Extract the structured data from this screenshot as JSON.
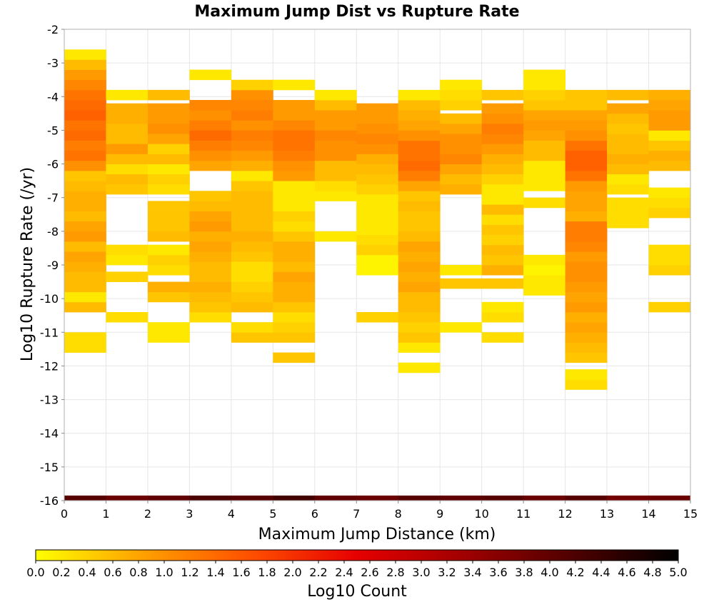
{
  "chart_data": {
    "type": "heatmap",
    "title": "Maximum Jump Dist vs Rupture Rate",
    "xlabel": "Maximum Jump Distance (km)",
    "ylabel": "Log10 Rupture Rate (/yr)",
    "xlim": [
      0,
      15
    ],
    "ylim": [
      -16,
      -2
    ],
    "x_ticks": [
      "0",
      "1",
      "2",
      "3",
      "4",
      "5",
      "6",
      "7",
      "8",
      "9",
      "10",
      "11",
      "12",
      "13",
      "14",
      "15"
    ],
    "y_ticks": [
      "-2",
      "-3",
      "-4",
      "-5",
      "-6",
      "-7",
      "-8",
      "-9",
      "-10",
      "-11",
      "-12",
      "-13",
      "-14",
      "-15",
      "-16"
    ],
    "grid": true,
    "x_bin_width": 1,
    "y_bin_width": 0.3,
    "colorbar": {
      "label": "Log10 Count",
      "min": 0.0,
      "max": 5.0,
      "colormap": [
        "#ffff00",
        "#ffa000",
        "#ff5000",
        "#e60000",
        "#a00000",
        "#500000",
        "#000000"
      ],
      "ticks": [
        "0.0",
        "0.2",
        "0.4",
        "0.6",
        "0.8",
        "1.0",
        "1.2",
        "1.4",
        "1.6",
        "1.8",
        "2.0",
        "2.2",
        "2.4",
        "2.6",
        "2.8",
        "3.0",
        "3.2",
        "3.4",
        "3.6",
        "3.8",
        "4.0",
        "4.2",
        "4.4",
        "4.6",
        "4.8",
        "5.0"
      ]
    },
    "columns": [
      {
        "x": 0.5,
        "y_bin_starts": [
          -16.0
        ],
        "values": [
          4.1
        ]
      },
      {
        "x": 0.5,
        "y_bin_starts": [
          -11.6,
          -11.3,
          -10.4,
          -10.1,
          -9.8,
          -9.5,
          -9.2,
          -8.9,
          -8.6,
          -8.3,
          -8.0,
          -7.7,
          -7.4,
          -7.1,
          -6.8,
          -6.5,
          -6.2,
          -5.9,
          -5.6,
          -5.3,
          -5.0,
          -4.7,
          -4.4,
          -4.1,
          -3.8,
          -3.5,
          -3.2,
          -2.9
        ],
        "values": [
          0.3,
          0.3,
          0.6,
          0.2,
          0.6,
          0.6,
          0.7,
          0.8,
          0.6,
          0.9,
          0.8,
          0.6,
          0.7,
          0.7,
          0.6,
          0.5,
          1.0,
          1.3,
          1.2,
          1.4,
          1.3,
          1.5,
          1.4,
          1.3,
          1.1,
          0.9,
          0.6,
          0.2
        ]
      },
      {
        "x": 1.5,
        "y_bin_starts": [
          -16.0
        ],
        "values": [
          3.9
        ]
      },
      {
        "x": 1.5,
        "y_bin_starts": [
          -10.7,
          -9.5,
          -9.0,
          -8.7,
          -6.9,
          -6.6,
          -6.3,
          -6.0,
          -5.7,
          -5.4,
          -5.1,
          -4.8,
          -4.5,
          -4.1
        ],
        "values": [
          0.3,
          0.4,
          0.2,
          0.3,
          0.5,
          0.6,
          0.3,
          0.6,
          0.9,
          0.6,
          0.6,
          0.7,
          0.7,
          0.2
        ]
      },
      {
        "x": 2.5,
        "y_bin_starts": [
          -16.0
        ],
        "values": [
          4.0
        ]
      },
      {
        "x": 2.5,
        "y_bin_starts": [
          -11.3,
          -11.0,
          -10.1,
          -9.8,
          -9.3,
          -9.0,
          -8.7,
          -8.3,
          -8.0,
          -7.7,
          -7.4,
          -6.9,
          -6.6,
          -6.3,
          -6.0,
          -5.7,
          -5.4,
          -5.1,
          -4.8,
          -4.5,
          -4.1
        ],
        "values": [
          0.2,
          0.2,
          0.5,
          0.7,
          0.3,
          0.4,
          0.2,
          0.6,
          0.5,
          0.5,
          0.5,
          0.3,
          0.4,
          0.2,
          0.6,
          0.4,
          0.8,
          1.0,
          0.9,
          0.9,
          0.6
        ]
      },
      {
        "x": 3.5,
        "y_bin_starts": [
          -16.0
        ],
        "values": [
          4.2
        ]
      },
      {
        "x": 3.5,
        "y_bin_starts": [
          -10.7,
          -10.4,
          -10.1,
          -9.8,
          -9.5,
          -9.2,
          -8.9,
          -8.6,
          -8.3,
          -8.0,
          -7.7,
          -7.4,
          -7.1,
          -6.2,
          -5.9,
          -5.6,
          -5.3,
          -5.0,
          -4.7,
          -4.4,
          -3.5
        ],
        "values": [
          0.3,
          0.5,
          0.6,
          0.7,
          0.6,
          0.6,
          0.7,
          0.8,
          0.7,
          0.9,
          0.8,
          0.6,
          0.5,
          0.8,
          1.0,
          1.2,
          1.4,
          1.2,
          1.0,
          1.1,
          0.2
        ]
      },
      {
        "x": 4.5,
        "y_bin_starts": [
          -16.0
        ],
        "values": [
          4.1
        ]
      },
      {
        "x": 4.5,
        "y_bin_starts": [
          -11.3,
          -11.0,
          -10.4,
          -10.1,
          -9.8,
          -9.5,
          -9.2,
          -8.9,
          -8.6,
          -8.3,
          -8.0,
          -7.7,
          -7.4,
          -7.1,
          -6.8,
          -6.5,
          -6.2,
          -5.9,
          -5.6,
          -5.3,
          -5.0,
          -4.7,
          -4.4,
          -4.1,
          -3.8
        ],
        "values": [
          0.5,
          0.3,
          0.6,
          0.5,
          0.4,
          0.3,
          0.3,
          0.5,
          0.6,
          0.7,
          0.6,
          0.6,
          0.6,
          0.6,
          0.5,
          0.2,
          0.7,
          0.9,
          1.1,
          1.2,
          1.0,
          1.2,
          1.1,
          1.0,
          0.4
        ]
      },
      {
        "x": 5.5,
        "y_bin_starts": [
          -16.0
        ],
        "values": [
          4.3
        ]
      },
      {
        "x": 5.5,
        "y_bin_starts": [
          -11.9,
          -11.3,
          -11.0,
          -10.7,
          -10.4,
          -10.1,
          -9.8,
          -9.5,
          -9.2,
          -8.9,
          -8.6,
          -8.3,
          -8.0,
          -7.7,
          -7.4,
          -7.1,
          -6.8,
          -6.5,
          -6.2,
          -5.9,
          -5.6,
          -5.3,
          -5.0,
          -4.7,
          -4.4,
          -3.8
        ],
        "values": [
          0.5,
          0.5,
          0.4,
          0.3,
          0.5,
          0.7,
          0.7,
          0.8,
          0.6,
          0.7,
          0.7,
          0.5,
          0.3,
          0.4,
          0.2,
          0.2,
          0.2,
          0.9,
          1.0,
          1.2,
          1.3,
          1.3,
          1.1,
          0.9,
          0.9,
          0.2
        ]
      },
      {
        "x": 6.5,
        "y_bin_starts": [
          -16.0
        ],
        "values": [
          4.0
        ]
      },
      {
        "x": 6.5,
        "y_bin_starts": [
          -8.3,
          -7.1,
          -6.8,
          -6.5,
          -6.2,
          -5.9,
          -5.6,
          -5.3,
          -5.0,
          -4.7,
          -4.4,
          -4.1
        ],
        "values": [
          0.2,
          0.2,
          0.3,
          0.6,
          0.6,
          1.0,
          1.0,
          1.1,
          0.9,
          0.9,
          0.6,
          0.2
        ]
      },
      {
        "x": 7.5,
        "y_bin_starts": [
          -16.0
        ],
        "values": [
          3.9
        ]
      },
      {
        "x": 7.5,
        "y_bin_starts": [
          -10.7,
          -9.3,
          -9.0,
          -8.7,
          -8.4,
          -8.1,
          -7.8,
          -7.5,
          -7.2,
          -6.9,
          -6.6,
          -6.3,
          -6.0,
          -5.7,
          -5.4,
          -5.1,
          -4.8,
          -4.5
        ],
        "values": [
          0.4,
          0.1,
          0.1,
          0.4,
          0.3,
          0.2,
          0.2,
          0.2,
          0.2,
          0.4,
          0.5,
          0.6,
          0.7,
          1.0,
          1.1,
          1.0,
          0.9,
          0.9
        ]
      },
      {
        "x": 8.5,
        "y_bin_starts": [
          -16.0
        ],
        "values": [
          4.1
        ]
      },
      {
        "x": 8.5,
        "y_bin_starts": [
          -12.2,
          -11.6,
          -11.3,
          -11.0,
          -10.7,
          -10.4,
          -10.1,
          -9.8,
          -9.5,
          -9.2,
          -8.9,
          -8.6,
          -8.3,
          -8.0,
          -7.7,
          -7.4,
          -7.1,
          -6.8,
          -6.5,
          -6.2,
          -5.9,
          -5.6,
          -5.3,
          -5.0,
          -4.7,
          -4.4,
          -4.1
        ],
        "values": [
          0.2,
          0.2,
          0.5,
          0.4,
          0.5,
          0.6,
          0.6,
          0.8,
          0.7,
          0.8,
          0.7,
          0.8,
          0.6,
          0.5,
          0.5,
          0.6,
          0.5,
          0.8,
          1.2,
          1.4,
          1.3,
          1.3,
          1.0,
          0.8,
          0.7,
          0.6,
          0.2
        ]
      },
      {
        "x": 9.5,
        "y_bin_starts": [
          -16.0
        ],
        "values": [
          4.0
        ]
      },
      {
        "x": 9.5,
        "y_bin_starts": [
          -11.0,
          -9.7,
          -9.3,
          -6.9,
          -6.6,
          -6.3,
          -6.0,
          -5.7,
          -5.4,
          -5.1,
          -4.8,
          -4.4,
          -4.1,
          -3.8
        ],
        "values": [
          0.2,
          0.5,
          0.2,
          0.7,
          0.6,
          0.8,
          1.1,
          1.0,
          1.0,
          0.8,
          0.6,
          0.4,
          0.3,
          0.2
        ]
      },
      {
        "x": 10.5,
        "y_bin_starts": [
          -16.0
        ],
        "values": [
          4.1
        ]
      },
      {
        "x": 10.5,
        "y_bin_starts": [
          -11.3,
          -10.7,
          -10.4,
          -9.7,
          -9.3,
          -9.0,
          -8.7,
          -8.4,
          -8.1,
          -7.8,
          -7.5,
          -7.2,
          -6.9,
          -6.6,
          -6.3,
          -6.0,
          -5.7,
          -5.4,
          -5.1,
          -4.8,
          -4.5,
          -4.1
        ],
        "values": [
          0.3,
          0.3,
          0.2,
          0.5,
          0.7,
          0.5,
          0.6,
          0.4,
          0.5,
          0.3,
          0.6,
          0.2,
          0.2,
          0.4,
          0.6,
          0.7,
          0.9,
          1.1,
          1.2,
          1.0,
          0.9,
          0.5
        ]
      },
      {
        "x": 11.5,
        "y_bin_starts": [
          -16.0
        ],
        "values": [
          3.9
        ]
      },
      {
        "x": 11.5,
        "y_bin_starts": [
          -9.9,
          -9.6,
          -9.3,
          -9.0,
          -7.3,
          -6.8,
          -6.5,
          -6.2,
          -5.9,
          -5.6,
          -5.3,
          -5.0,
          -4.7,
          -4.4,
          -4.1,
          -3.8,
          -3.5
        ],
        "values": [
          0.2,
          0.2,
          0.1,
          0.2,
          0.3,
          0.2,
          0.2,
          0.2,
          0.6,
          0.6,
          0.8,
          0.9,
          0.8,
          0.5,
          0.4,
          0.2,
          0.2
        ]
      },
      {
        "x": 12.5,
        "y_bin_starts": [
          -16.0
        ],
        "values": [
          4.1
        ]
      },
      {
        "x": 12.5,
        "y_bin_starts": [
          -12.7,
          -12.4,
          -11.9,
          -11.6,
          -11.3,
          -11.0,
          -10.7,
          -10.4,
          -10.1,
          -9.8,
          -9.5,
          -9.2,
          -8.9,
          -8.6,
          -8.3,
          -8.0,
          -7.7,
          -7.4,
          -7.1,
          -6.8,
          -6.5,
          -6.2,
          -5.9,
          -5.6,
          -5.3,
          -5.0,
          -4.7,
          -4.4,
          -4.1
        ],
        "values": [
          0.3,
          0.2,
          0.5,
          0.6,
          0.7,
          0.8,
          0.7,
          0.9,
          0.8,
          0.9,
          1.0,
          1.0,
          0.9,
          1.1,
          1.2,
          1.2,
          0.7,
          0.8,
          0.8,
          0.9,
          1.3,
          1.5,
          1.5,
          1.3,
          1.0,
          0.9,
          0.8,
          0.5,
          0.5
        ]
      },
      {
        "x": 13.5,
        "y_bin_starts": [
          -16.0
        ],
        "values": [
          3.8
        ]
      },
      {
        "x": 13.5,
        "y_bin_starts": [
          -7.9,
          -7.6,
          -7.3,
          -6.9,
          -6.6,
          -6.3,
          -6.0,
          -5.7,
          -5.4,
          -5.1,
          -4.8,
          -4.5,
          -4.1
        ],
        "values": [
          0.3,
          0.3,
          0.3,
          0.3,
          0.2,
          0.6,
          0.7,
          0.6,
          0.6,
          0.5,
          0.6,
          0.8,
          0.6
        ]
      },
      {
        "x": 14.5,
        "y_bin_starts": [
          -16.0
        ],
        "values": [
          3.9
        ]
      },
      {
        "x": 14.5,
        "y_bin_starts": [
          -10.4,
          -9.3,
          -9.0,
          -8.7,
          -7.6,
          -7.3,
          -7.0,
          -6.2,
          -5.9,
          -5.6,
          -5.3,
          -5.0,
          -4.7,
          -4.4,
          -4.1
        ],
        "values": [
          0.4,
          0.4,
          0.3,
          0.3,
          0.4,
          0.3,
          0.2,
          0.6,
          0.7,
          0.5,
          0.2,
          0.9,
          0.9,
          0.8,
          0.7
        ]
      }
    ]
  }
}
